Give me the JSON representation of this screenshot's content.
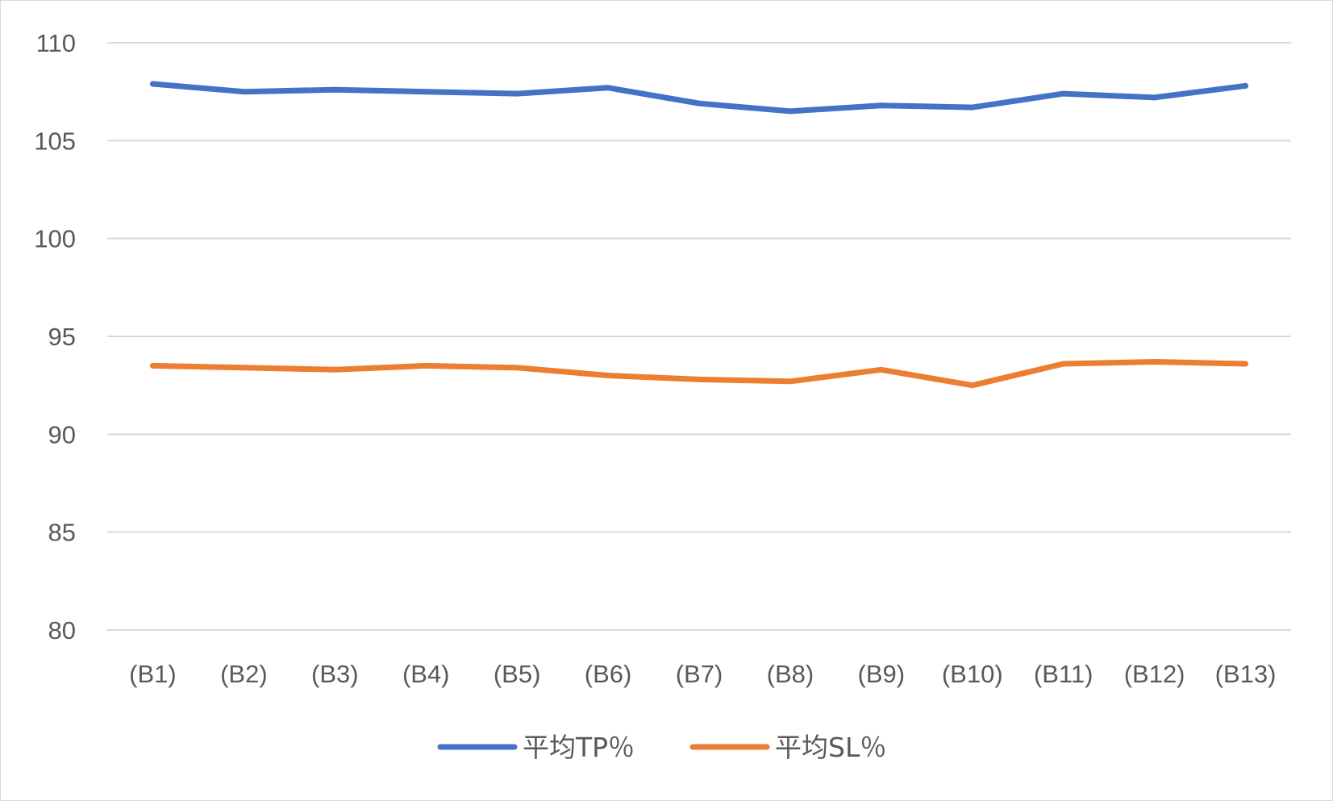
{
  "chart_data": {
    "type": "line",
    "categories": [
      "(B1)",
      "(B2)",
      "(B3)",
      "(B4)",
      "(B5)",
      "(B6)",
      "(B7)",
      "(B8)",
      "(B9)",
      "(B10)",
      "(B11)",
      "(B12)",
      "(B13)"
    ],
    "series": [
      {
        "name": "平均TP％",
        "color": "#4472C4",
        "values": [
          107.9,
          107.5,
          107.6,
          107.5,
          107.4,
          107.7,
          106.9,
          106.5,
          106.8,
          106.7,
          107.4,
          107.2,
          107.8
        ]
      },
      {
        "name": "平均SL％",
        "color": "#ED7D31",
        "values": [
          93.5,
          93.4,
          93.3,
          93.5,
          93.4,
          93.0,
          92.8,
          92.7,
          93.3,
          92.5,
          93.6,
          93.7,
          93.6
        ]
      }
    ],
    "ylim": [
      80,
      110
    ],
    "yticks": [
      80,
      85,
      90,
      95,
      100,
      105,
      110
    ],
    "grid": true,
    "legend_position": "bottom",
    "title": "",
    "xlabel": "",
    "ylabel": ""
  }
}
